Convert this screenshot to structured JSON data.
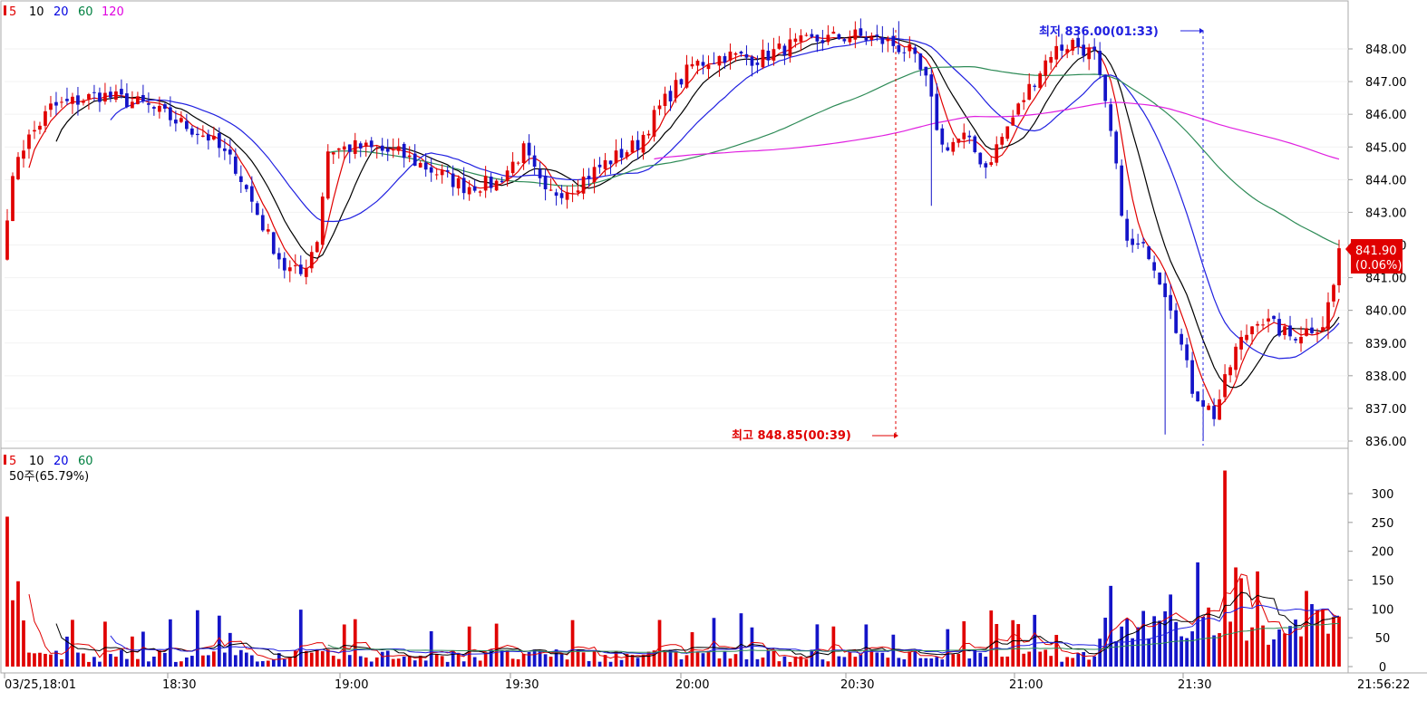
{
  "legend_price": {
    "items": [
      {
        "label": "5",
        "color": "#e00000"
      },
      {
        "label": "10",
        "color": "#000000"
      },
      {
        "label": "20",
        "color": "#0000e0"
      },
      {
        "label": "60",
        "color": "#008040"
      },
      {
        "label": "120",
        "color": "#e000e0"
      }
    ]
  },
  "legend_volume": {
    "items": [
      {
        "label": "5",
        "color": "#e00000"
      },
      {
        "label": "10",
        "color": "#000000"
      },
      {
        "label": "20",
        "color": "#0000e0"
      },
      {
        "label": "60",
        "color": "#008040"
      }
    ],
    "subtitle": "50주(65.79%)"
  },
  "annotations": {
    "high_label": "최고 848.85(00:39)",
    "low_label": "최저 836.00(01:33)",
    "current_price": "841.90",
    "current_change": "(0.06%)"
  },
  "colors": {
    "up": "#e00000",
    "down": "#1414c8",
    "ma5": "#e00000",
    "ma10": "#000000",
    "ma20": "#2020e0",
    "ma60": "#2e8b57",
    "ma120": "#e020e0",
    "grid": "#dddddd",
    "axis": "#999999"
  },
  "chart_data": [
    {
      "type": "candlestick",
      "title": "",
      "xlabel": "",
      "ylabel": "",
      "ylim": [
        836.0,
        849.0
      ],
      "y_ticks": [
        "848.00",
        "847.00",
        "846.00",
        "845.00",
        "844.00",
        "843.00",
        "842.00",
        "841.00",
        "840.00",
        "839.00",
        "838.00",
        "837.00",
        "836.00"
      ],
      "x_ticks": [
        "03/25,18:01",
        "18:30",
        "19:00",
        "19:30",
        "20:00",
        "20:30",
        "21:00",
        "21:30"
      ],
      "x_end_label": "21:56:22",
      "x": [
        "18:01",
        "18:30",
        "19:00",
        "19:30",
        "20:00",
        "20:30",
        "21:00",
        "21:30",
        "21:56"
      ],
      "price_at_ticks": [
        844.8,
        846.2,
        844.7,
        844.0,
        844.6,
        848.2,
        845.0,
        837.0,
        841.9
      ],
      "high": 848.85,
      "low": 836.0,
      "last": 841.9
    },
    {
      "type": "bar",
      "title": "",
      "xlabel": "",
      "ylabel": "",
      "ylim": [
        0,
        350
      ],
      "y_ticks": [
        "300",
        "250",
        "200",
        "150",
        "100",
        "50",
        "0"
      ],
      "max_volume": 340
    }
  ]
}
